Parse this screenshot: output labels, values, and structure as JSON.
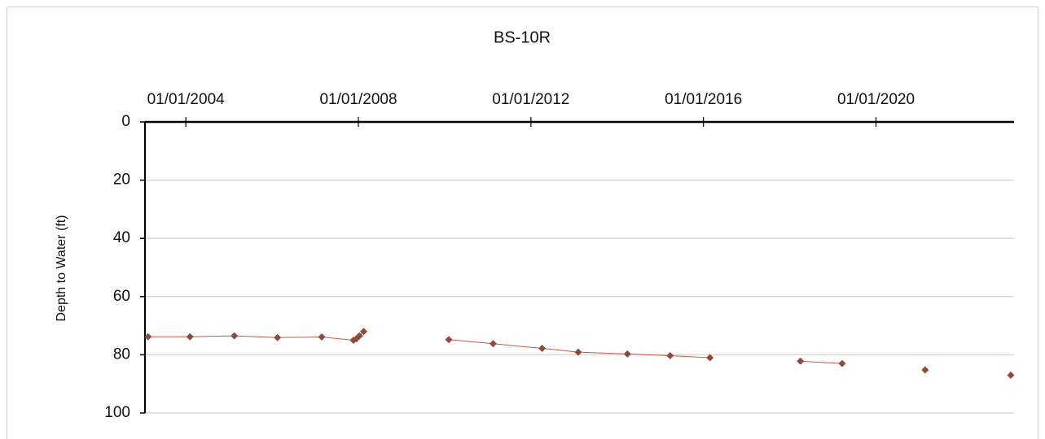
{
  "chart_data": {
    "type": "line",
    "title": "BS-10R",
    "y_label": "Depth to Water (ft)",
    "y_inverted": true,
    "grid": true,
    "xlim": [
      "2003-01-20",
      "2023-03-15"
    ],
    "xticks": [
      {
        "value": "2004-01-01",
        "label": "01/01/2004"
      },
      {
        "value": "2008-01-01",
        "label": "01/01/2008"
      },
      {
        "value": "2012-01-01",
        "label": "01/01/2012"
      },
      {
        "value": "2016-01-01",
        "label": "01/01/2016"
      },
      {
        "value": "2020-01-01",
        "label": "01/01/2020"
      }
    ],
    "ylim": [
      0,
      100
    ],
    "yticks": [
      0,
      20,
      40,
      60,
      80,
      100
    ],
    "series": [
      {
        "line_color": "#c65a48",
        "color": "#8e4a3a",
        "x": [
          "2003-02-15",
          "2004-02-05",
          "2005-02-15",
          "2006-02-15",
          "2007-02-25",
          "2007-11-20",
          "2007-12-15",
          "2008-01-10",
          "2008-02-15",
          null,
          "2010-02-05",
          "2011-02-15",
          "2012-04-05",
          "2013-02-05",
          "2014-03-28",
          "2015-03-25",
          "2016-02-25",
          null,
          "2018-04-01",
          "2019-03-20",
          null,
          "2021-02-20",
          null,
          "2023-02-15"
        ],
        "values": [
          73.8,
          73.8,
          73.5,
          74.1,
          73.9,
          75.0,
          74.5,
          73.5,
          72.0,
          null,
          74.8,
          76.2,
          77.8,
          79.1,
          79.7,
          80.3,
          81.0,
          null,
          82.2,
          83.0,
          null,
          85.2,
          null,
          87.0
        ]
      }
    ]
  }
}
